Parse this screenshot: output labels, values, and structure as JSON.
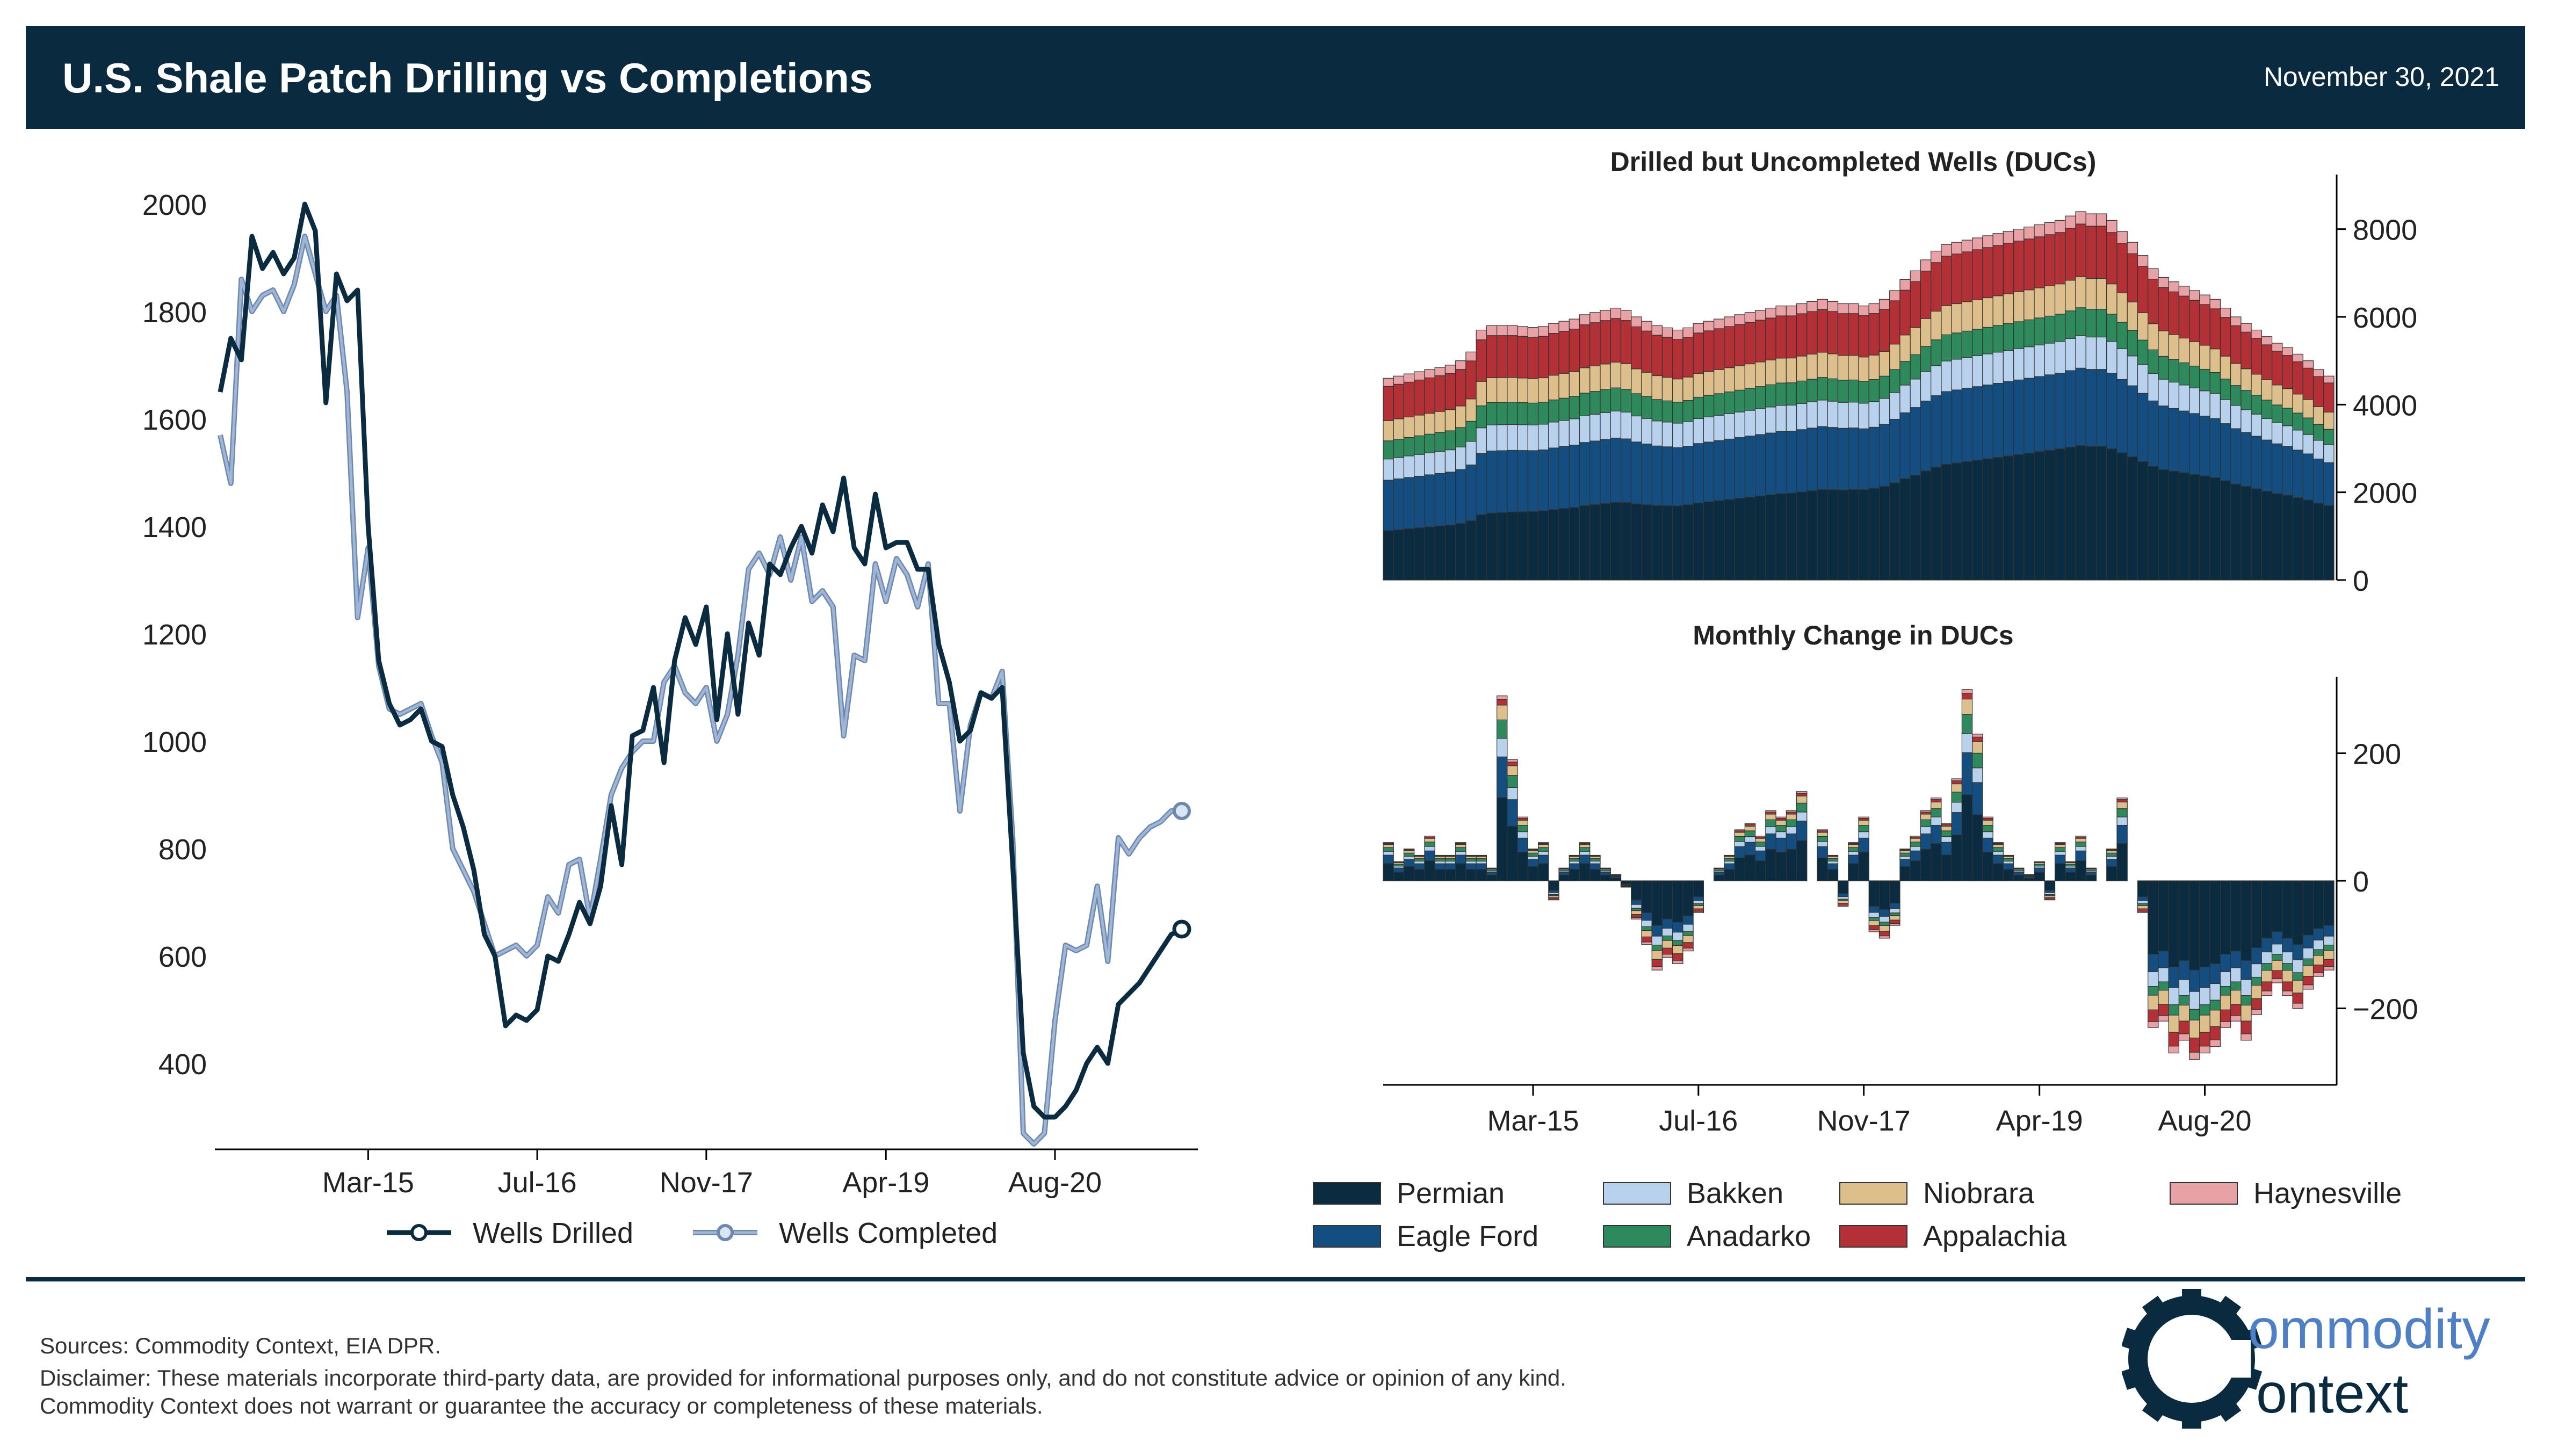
{
  "header": {
    "title": "U.S. Shale Patch Drilling vs Completions",
    "date": "November 30, 2021"
  },
  "footer": {
    "sources": "Sources: Commodity Context, EIA DPR.",
    "disclaimer": "Disclaimer: These materials incorporate third-party data, are provided for informational purposes only, and do not constitute advice or opinion of any kind. Commodity Context does not warrant or guarantee the accuracy or completeness of these materials."
  },
  "logo": {
    "text_top": "ommodity",
    "text_bottom": "ontext",
    "icon": "gear-c-icon"
  },
  "colors": {
    "header_bg": "#0a2a40",
    "Permian": "#0b2b40",
    "Eagle Ford": "#144e80",
    "Bakken": "#b8d2ee",
    "Anadarko": "#2e8a5c",
    "Niobrara": "#dcbf8a",
    "Appalachia": "#b23036",
    "Haynesville": "#e8a2a6",
    "wells_drilled": "#0b2b40",
    "wells_completed": "#9fb6d8"
  },
  "chart_data": [
    {
      "id": "drilling",
      "type": "line",
      "title": "",
      "x_start": "Jan-14",
      "x_end": "Oct-21",
      "xticks": [
        "Mar-15",
        "Jul-16",
        "Nov-17",
        "Apr-19",
        "Aug-20"
      ],
      "yticks": [
        400,
        600,
        800,
        1000,
        1200,
        1400,
        1600,
        1800,
        2000
      ],
      "ylim": [
        250,
        2050
      ],
      "legend_position": "bottom",
      "series": [
        {
          "name": "Wells Drilled",
          "values": [
            1650,
            1750,
            1710,
            1940,
            1880,
            1910,
            1870,
            1900,
            2000,
            1950,
            1630,
            1870,
            1820,
            1840,
            1400,
            1150,
            1070,
            1030,
            1040,
            1060,
            1000,
            990,
            900,
            840,
            760,
            640,
            600,
            470,
            490,
            480,
            500,
            600,
            590,
            640,
            700,
            660,
            730,
            880,
            770,
            1010,
            1020,
            1100,
            960,
            1150,
            1230,
            1180,
            1250,
            1040,
            1200,
            1050,
            1220,
            1160,
            1330,
            1310,
            1360,
            1400,
            1350,
            1440,
            1390,
            1490,
            1360,
            1330,
            1460,
            1360,
            1370,
            1370,
            1320,
            1320,
            1180,
            1110,
            1000,
            1020,
            1090,
            1080,
            1100,
            770,
            420,
            320,
            300,
            300,
            320,
            350,
            400,
            430,
            400,
            510,
            530,
            550,
            580,
            610,
            640,
            650
          ]
        },
        {
          "name": "Wells Completed",
          "values": [
            1570,
            1480,
            1860,
            1800,
            1830,
            1840,
            1800,
            1850,
            1940,
            1870,
            1800,
            1830,
            1650,
            1230,
            1360,
            1140,
            1060,
            1050,
            1060,
            1070,
            1010,
            960,
            800,
            760,
            720,
            660,
            600,
            610,
            620,
            600,
            620,
            710,
            680,
            770,
            780,
            670,
            780,
            900,
            950,
            980,
            1000,
            1000,
            1110,
            1140,
            1090,
            1070,
            1100,
            1000,
            1050,
            1160,
            1320,
            1350,
            1310,
            1380,
            1300,
            1380,
            1260,
            1280,
            1250,
            1010,
            1160,
            1150,
            1330,
            1260,
            1340,
            1310,
            1250,
            1330,
            1070,
            1070,
            870,
            1030,
            1090,
            1080,
            1130,
            820,
            270,
            250,
            270,
            480,
            620,
            610,
            620,
            730,
            590,
            820,
            790,
            820,
            840,
            850,
            870,
            870
          ]
        }
      ]
    },
    {
      "id": "ducs",
      "type": "bar",
      "stacked": true,
      "title": "Drilled but Uncompleted Wells (DUCs)",
      "x_start": "Jan-14",
      "x_end": "Oct-21",
      "xticks": [],
      "yticks": [
        0,
        2000,
        4000,
        6000,
        8000
      ],
      "ylim": [
        0,
        9000
      ],
      "axis_side": "right",
      "total": [
        4600,
        4650,
        4700,
        4750,
        4800,
        4850,
        4900,
        5000,
        5200,
        5700,
        5800,
        5800,
        5800,
        5780,
        5760,
        5780,
        5850,
        5900,
        5950,
        6050,
        6100,
        6150,
        6200,
        6150,
        6000,
        5900,
        5800,
        5750,
        5700,
        5750,
        5850,
        5900,
        5950,
        6000,
        6050,
        6100,
        6150,
        6200,
        6250,
        6250,
        6300,
        6350,
        6400,
        6350,
        6300,
        6300,
        6250,
        6300,
        6400,
        6600,
        6850,
        7050,
        7300,
        7500,
        7650,
        7700,
        7750,
        7800,
        7850,
        7900,
        7950,
        8000,
        8050,
        8100,
        8150,
        8200,
        8300,
        8400,
        8350,
        8350,
        8200,
        7950,
        7700,
        7400,
        7100,
        6900,
        6800,
        6700,
        6600,
        6500,
        6400,
        6200,
        6000,
        5850,
        5700,
        5550,
        5400,
        5300,
        5150,
        5000,
        4800,
        4650
      ],
      "shares": {
        "Permian": 0.245,
        "Eagle Ford": 0.25,
        "Bakken": 0.105,
        "Anadarko": 0.09,
        "Niobrara": 0.1,
        "Appalachia": 0.17,
        "Haynesville": 0.04
      },
      "series_order": [
        "Permian",
        "Eagle Ford",
        "Bakken",
        "Anadarko",
        "Niobrara",
        "Appalachia",
        "Haynesville"
      ]
    },
    {
      "id": "duc_change",
      "type": "bar",
      "stacked": true,
      "title": "Monthly Change in DUCs",
      "x_start": "Jan-14",
      "x_end": "Oct-21",
      "xticks": [
        "Mar-15",
        "Jul-16",
        "Nov-17",
        "Apr-19",
        "Aug-20"
      ],
      "yticks": [
        -200,
        0,
        200
      ],
      "ylim": [
        -320,
        320
      ],
      "axis_side": "right",
      "net": [
        60,
        30,
        50,
        40,
        70,
        40,
        40,
        60,
        40,
        40,
        20,
        290,
        190,
        100,
        50,
        60,
        -30,
        20,
        40,
        60,
        40,
        20,
        10,
        -10,
        -60,
        -100,
        -140,
        -120,
        -130,
        -110,
        -50,
        0,
        20,
        40,
        80,
        90,
        70,
        110,
        100,
        110,
        140,
        0,
        80,
        40,
        -40,
        60,
        100,
        -80,
        -90,
        -70,
        50,
        70,
        110,
        130,
        90,
        160,
        300,
        230,
        100,
        60,
        40,
        20,
        10,
        30,
        -30,
        60,
        30,
        70,
        20,
        0,
        50,
        130,
        0,
        -50,
        -230,
        -220,
        -270,
        -250,
        -280,
        -270,
        -260,
        -230,
        -220,
        -250,
        -210,
        -180,
        -160,
        -180,
        -200,
        -170,
        -150,
        -140
      ],
      "series_order": [
        "Permian",
        "Eagle Ford",
        "Bakken",
        "Anadarko",
        "Niobrara",
        "Appalachia",
        "Haynesville"
      ]
    }
  ],
  "legend": {
    "items": [
      {
        "name": "Permian"
      },
      {
        "name": "Eagle Ford"
      },
      {
        "name": "Bakken"
      },
      {
        "name": "Anadarko"
      },
      {
        "name": "Niobrara"
      },
      {
        "name": "Appalachia"
      },
      {
        "name": "Haynesville"
      }
    ]
  }
}
